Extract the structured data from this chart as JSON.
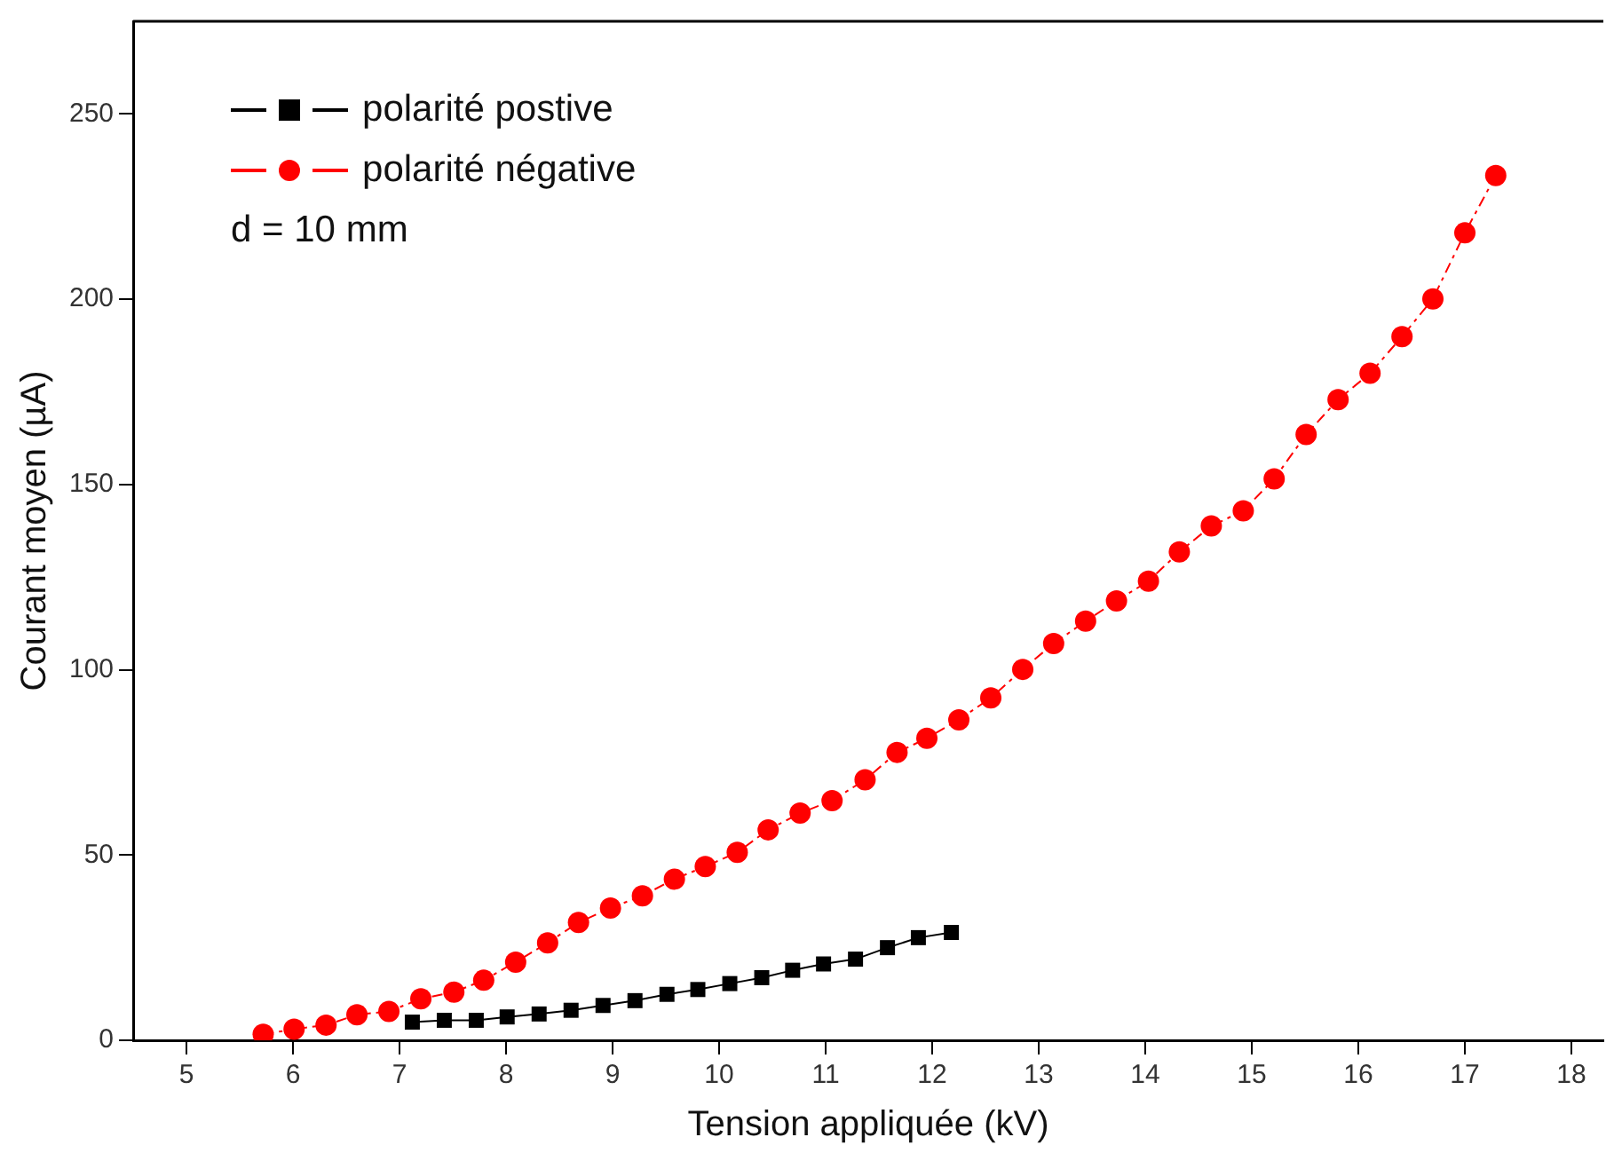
{
  "chart_data": {
    "type": "line",
    "xlabel": "Tension appliquée (kV)",
    "ylabel": "Courant moyen (µA)",
    "xlim": [
      4.5,
      18.3
    ],
    "ylim": [
      0,
      275
    ],
    "xticks": [
      5,
      6,
      7,
      8,
      9,
      10,
      11,
      12,
      13,
      14,
      15,
      16,
      17,
      18
    ],
    "yticks": [
      0,
      50,
      100,
      150,
      200,
      250
    ],
    "grid": false,
    "legend": "top left",
    "annotations": [
      "d = 10 mm"
    ],
    "series": [
      {
        "name": "polarité postive",
        "color": "#000000",
        "marker": "square",
        "line_style": "solid",
        "x": [
          7.12,
          7.42,
          7.72,
          8.01,
          8.31,
          8.61,
          8.91,
          9.21,
          9.51,
          9.8,
          10.1,
          10.4,
          10.69,
          10.98,
          11.28,
          11.58,
          11.87,
          12.18
        ],
        "values": [
          4.9,
          5.4,
          5.4,
          6.3,
          7.1,
          8.1,
          9.4,
          10.7,
          12.4,
          13.7,
          15.3,
          16.9,
          18.9,
          20.6,
          21.9,
          25,
          27.7,
          29.1
        ]
      },
      {
        "name": "polarité négative",
        "color": "#ff0000",
        "marker": "circle",
        "line_style": "dashed",
        "x": [
          5.72,
          6.01,
          6.31,
          6.6,
          6.9,
          7.2,
          7.51,
          7.79,
          8.09,
          8.39,
          8.68,
          8.98,
          9.28,
          9.58,
          9.87,
          10.17,
          10.46,
          10.76,
          11.06,
          11.37,
          11.67,
          11.95,
          12.25,
          12.55,
          12.85,
          13.14,
          13.44,
          13.73,
          14.03,
          14.32,
          14.62,
          14.92,
          15.21,
          15.51,
          15.81,
          16.11,
          16.41,
          16.7,
          17.0,
          17.29
        ],
        "values": [
          1.6,
          3,
          4.1,
          6.9,
          7.8,
          11.2,
          13,
          16.2,
          21.1,
          26.3,
          31.8,
          35.7,
          39,
          43.5,
          46.9,
          50.7,
          56.8,
          61.3,
          64.7,
          70.3,
          77.7,
          81.5,
          86.5,
          92.4,
          100.1,
          107.1,
          113.1,
          118.6,
          123.9,
          131.8,
          138.8,
          142.9,
          151.5,
          163.5,
          172.9,
          180,
          189.9,
          200.1,
          217.9,
          233.4
        ]
      }
    ]
  }
}
